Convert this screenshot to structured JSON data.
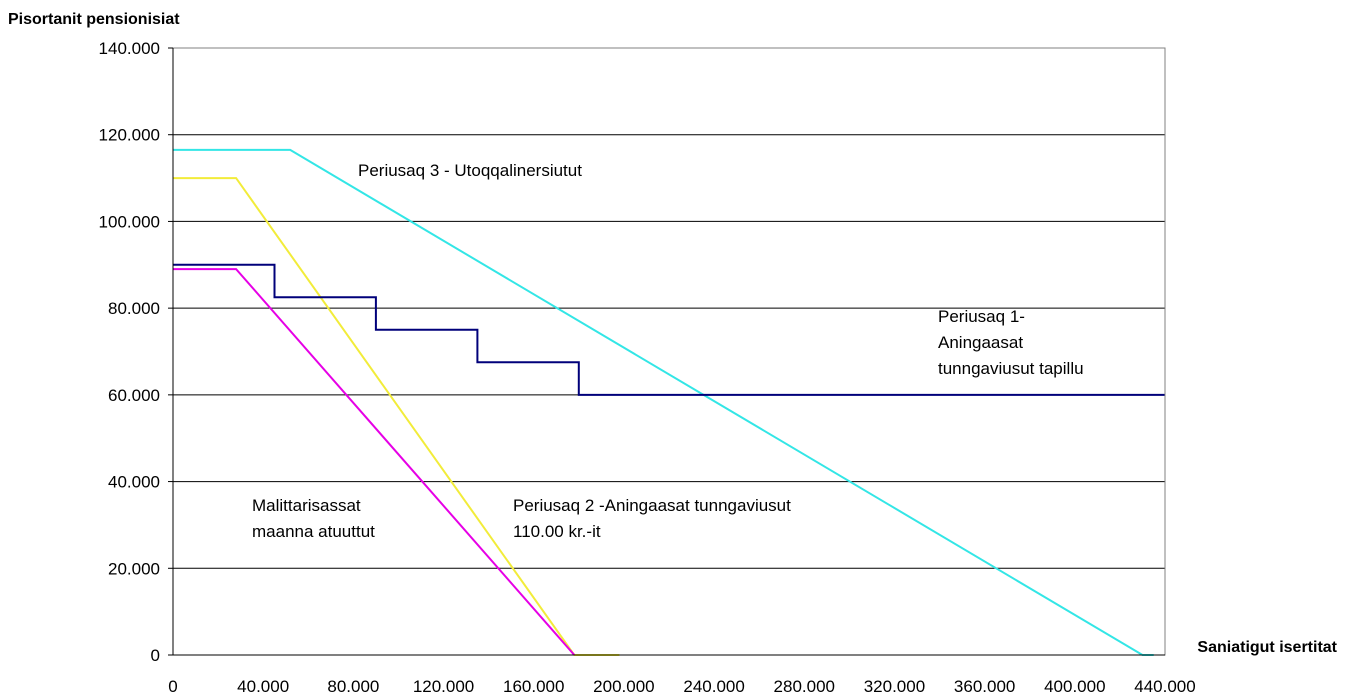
{
  "chart_data": {
    "type": "line",
    "title": "",
    "ylabel": "Pisortanit pensionisiat",
    "xlabel": "Saniatigut isertitat",
    "xlim": [
      0,
      440000
    ],
    "ylim": [
      0,
      140000
    ],
    "grid": {
      "horizontal": true,
      "vertical": false
    },
    "legend": "none",
    "x_ticks": [
      {
        "value": 0,
        "label": "0"
      },
      {
        "value": 40000,
        "label": "40.000"
      },
      {
        "value": 80000,
        "label": "80.000"
      },
      {
        "value": 120000,
        "label": "120.000"
      },
      {
        "value": 160000,
        "label": "160.000"
      },
      {
        "value": 200000,
        "label": "200.000"
      },
      {
        "value": 240000,
        "label": "240.000"
      },
      {
        "value": 280000,
        "label": "280.000"
      },
      {
        "value": 320000,
        "label": "320.000"
      },
      {
        "value": 360000,
        "label": "360.000"
      },
      {
        "value": 400000,
        "label": "400.000"
      },
      {
        "value": 440000,
        "label": "440.000"
      }
    ],
    "y_ticks": [
      {
        "value": 0,
        "label": "0"
      },
      {
        "value": 20000,
        "label": "20.000"
      },
      {
        "value": 40000,
        "label": "40.000"
      },
      {
        "value": 60000,
        "label": "60.000"
      },
      {
        "value": 80000,
        "label": "80.000"
      },
      {
        "value": 100000,
        "label": "100.000"
      },
      {
        "value": 120000,
        "label": "120.000"
      },
      {
        "value": 140000,
        "label": "140.000"
      }
    ],
    "series": [
      {
        "key": "periusaq-3",
        "color": "#33e6e6",
        "x": [
          0,
          52000,
          430000,
          435000
        ],
        "y": [
          116500,
          116500,
          0,
          0
        ]
      },
      {
        "key": "periusaq-2",
        "color": "#f2ec3a",
        "x": [
          0,
          28000,
          178000,
          198000
        ],
        "y": [
          110000,
          110000,
          0,
          0
        ]
      },
      {
        "key": "malittarisassat",
        "color": "#e600e6",
        "x": [
          0,
          28000,
          178000
        ],
        "y": [
          89000,
          89000,
          0
        ]
      },
      {
        "key": "periusaq-1",
        "color": "#00007a",
        "x": [
          0,
          45000,
          45000,
          90000,
          90000,
          135000,
          135000,
          180000,
          180000,
          440000
        ],
        "y": [
          90000,
          90000,
          82500,
          82500,
          75000,
          75000,
          67500,
          67500,
          60000,
          60000
        ]
      }
    ],
    "annotations": [
      {
        "key": "ann-periusaq-3",
        "lines": [
          "Periusaq 3 - Utoqqalinersiutut"
        ]
      },
      {
        "key": "ann-periusaq-1",
        "lines": [
          "Periusaq 1-",
          "Aningaasat",
          "tunngaviusut tapillu"
        ]
      },
      {
        "key": "ann-malittarisassat",
        "lines": [
          "Malittarisassat",
          "maanna atuuttut"
        ]
      },
      {
        "key": "ann-periusaq-2",
        "lines": [
          "Periusaq 2 -Aningaasat tunngaviusut",
          "110.00 kr.-it"
        ]
      }
    ]
  }
}
